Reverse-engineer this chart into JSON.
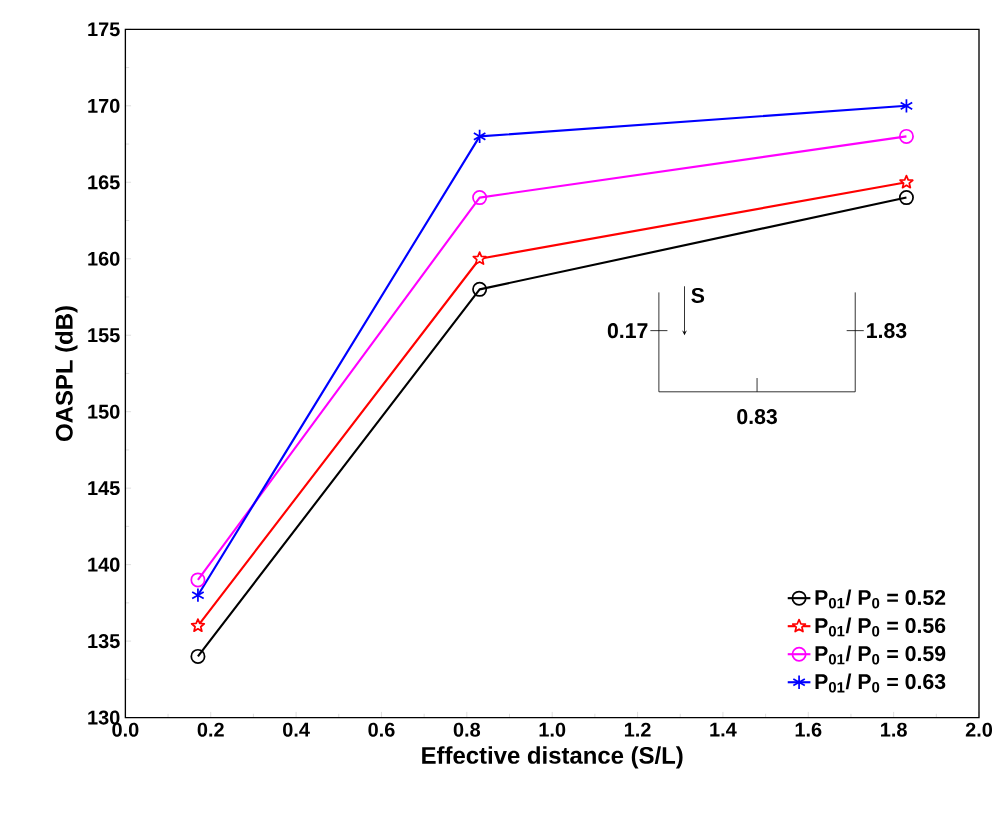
{
  "chart_data": {
    "type": "line",
    "xlabel": "Effective distance (S/L)",
    "ylabel": "OASPL (dB)",
    "x": [
      0.17,
      0.83,
      1.83
    ],
    "series": [
      {
        "name": "P$_{01}$/ P$_{0}$ = 0.52",
        "color": "#000000",
        "marker": "circle",
        "values": [
          134,
          158,
          164
        ]
      },
      {
        "name": "P$_{01}$/ P$_{0}$ = 0.56",
        "color": "#ff0000",
        "marker": "star",
        "values": [
          136,
          160,
          165
        ]
      },
      {
        "name": "P$_{01}$/ P$_{0}$ = 0.59",
        "color": "#ff00ff",
        "marker": "circle",
        "values": [
          139,
          164,
          168
        ]
      },
      {
        "name": "P$_{01}$/ P$_{0}$ = 0.63",
        "color": "#0000ff",
        "marker": "cross",
        "values": [
          138,
          168,
          170
        ]
      }
    ],
    "xlim": [
      0,
      2
    ],
    "xticks": [
      {
        "value": 0,
        "label": "0.0"
      },
      0.2,
      0.4,
      0.6,
      0.8,
      {
        "value": 1,
        "label": "1.0"
      },
      1.2,
      1.4,
      1.6,
      1.8,
      {
        "value": 2,
        "label": "2.0"
      }
    ],
    "ylim": [
      130,
      175
    ],
    "yticks": [
      130,
      135,
      140,
      145,
      150,
      155,
      160,
      165,
      170,
      175
    ],
    "legend": "bottom right",
    "line_style": "solid",
    "annotations": [
      "S",
      "0.17",
      "1.83",
      "0.83"
    ]
  }
}
